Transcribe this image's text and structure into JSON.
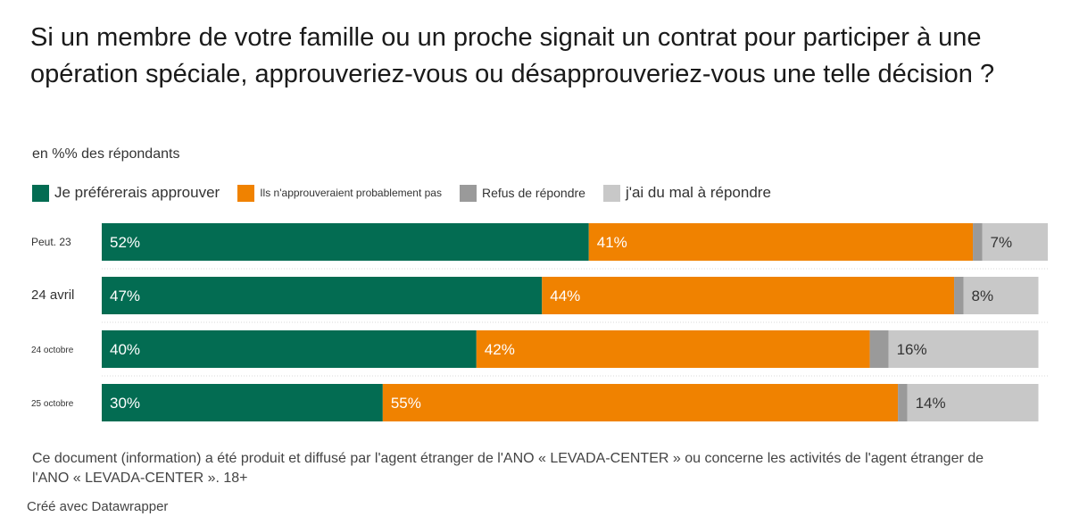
{
  "header": {
    "title": "Si un membre de votre famille ou un proche signait un contrat pour participer à une opération spéciale, approuveriez-vous ou désapprouveriez-vous une telle décision ?",
    "subtitle": "en %% des répondants"
  },
  "colors": {
    "approve": "#036c52",
    "disapprove": "#f08200",
    "refuse": "#9a9a9a",
    "hard": "#c8c8c8"
  },
  "chart_data": {
    "type": "bar",
    "orientation": "horizontal",
    "stacked": true,
    "categories": [
      "Peut. 23",
      "24 avril",
      "24 octobre",
      "25 octobre"
    ],
    "series": [
      {
        "name": "Je préférerais approuver",
        "values": [
          52,
          47,
          40,
          30
        ],
        "labels": [
          "52%",
          "47%",
          "40%",
          "30%"
        ]
      },
      {
        "name": "Ils n'approuveraient probablement pas",
        "values": [
          41,
          44,
          42,
          55
        ],
        "labels": [
          "41%",
          "44%",
          "42%",
          "55%"
        ]
      },
      {
        "name": "Refus de répondre",
        "values": [
          1,
          1,
          2,
          1
        ],
        "labels": [
          "",
          "",
          "",
          ""
        ]
      },
      {
        "name": "j'ai du mal à répondre",
        "values": [
          7,
          8,
          16,
          14
        ],
        "labels": [
          "7%",
          "8%",
          "16%",
          "14%"
        ]
      }
    ],
    "xlim": [
      0,
      101
    ],
    "grid": false,
    "legend": "top-left"
  },
  "footer": {
    "note": "Ce document (information) a été produit et diffusé par l'agent étranger de l'ANO « LEVADA-CENTER » ou concerne les activités de l'agent étranger de l'ANO « LEVADA-CENTER ». 18+",
    "credit": "Créé avec Datawrapper"
  }
}
